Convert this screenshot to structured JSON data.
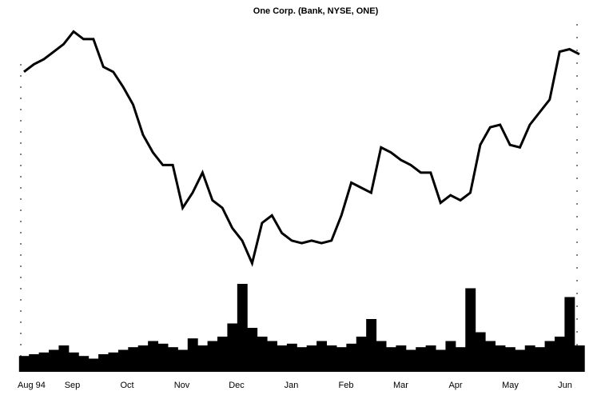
{
  "chart_data": {
    "type": "stock",
    "title": "One Corp. (Bank, NYSE, ONE)",
    "months": [
      "Aug 94",
      "Sep",
      "Oct",
      "Nov",
      "Dec",
      "Jan",
      "Feb",
      "Mar",
      "Apr",
      "May",
      "Jun"
    ],
    "price": {
      "color": "#000000",
      "ylim": [
        0,
        100
      ],
      "values": [
        81,
        84,
        86,
        89,
        92,
        97,
        94,
        94,
        83,
        81,
        75,
        68,
        56,
        49,
        44,
        44,
        27,
        33,
        41,
        30,
        27,
        19,
        14,
        5,
        21,
        24,
        17,
        14,
        13,
        14,
        13,
        14,
        24,
        37,
        35,
        33,
        51,
        49,
        46,
        44,
        41,
        41,
        29,
        32,
        30,
        33,
        52,
        59,
        60,
        52,
        51,
        60,
        65,
        70,
        89,
        90,
        88
      ]
    },
    "volume": {
      "color": "#000000",
      "ylim": [
        0,
        100
      ],
      "values": [
        18,
        20,
        22,
        25,
        30,
        22,
        18,
        15,
        20,
        22,
        25,
        28,
        30,
        35,
        32,
        28,
        25,
        38,
        30,
        35,
        40,
        55,
        100,
        50,
        40,
        35,
        30,
        32,
        28,
        30,
        35,
        30,
        28,
        32,
        40,
        60,
        35,
        28,
        30,
        25,
        28,
        30,
        25,
        35,
        28,
        95,
        45,
        35,
        30,
        28,
        25,
        30,
        28,
        35,
        40,
        85,
        30
      ]
    }
  }
}
